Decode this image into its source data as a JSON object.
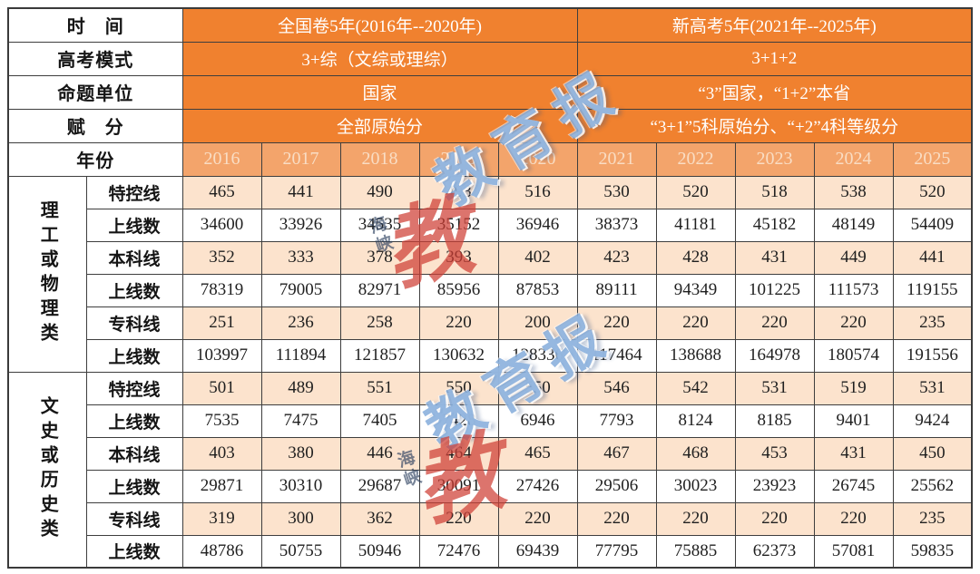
{
  "colors": {
    "header_orange": "#f0812f",
    "year_row_orange": "#f3a46b",
    "year_text": "#f9ddc4",
    "shaded_peach": "#fce3cd",
    "border": "#3e3e3e",
    "watermark_blue": "#6d9cd4",
    "watermark_red": "#ce3e34"
  },
  "watermark": {
    "main_text": "教育报",
    "script_glyph": "教",
    "side_text": "海峡"
  },
  "chart_data": {
    "type": "table",
    "title": "",
    "meta_rows": [
      {
        "label": "时　间",
        "national": "全国卷5年(2016年--2020年)",
        "new_gaokao": "新高考5年(2021年--2025年)"
      },
      {
        "label": "高考模式",
        "national": "3+综（文综或理综）",
        "new_gaokao": "3+1+2"
      },
      {
        "label": "命题单位",
        "national": "国家",
        "new_gaokao": "“3”国家，“1+2”本省"
      },
      {
        "label": "赋　分",
        "national": "全部原始分",
        "new_gaokao": "“3+1”5科原始分、“+2”4科等级分"
      }
    ],
    "year_header": {
      "label": "年份",
      "years": [
        "2016",
        "2017",
        "2018",
        "2019",
        "2020",
        "2021",
        "2022",
        "2023",
        "2024",
        "2025"
      ]
    },
    "groups": [
      {
        "name": "理工或物理类",
        "metrics": [
          {
            "label": "特控线",
            "shaded": true,
            "values": [
              465,
              441,
              490,
              493,
              516,
              530,
              520,
              518,
              538,
              520
            ]
          },
          {
            "label": "上线数",
            "shaded": false,
            "values": [
              34600,
              33926,
              34535,
              35152,
              36946,
              38373,
              41181,
              45182,
              48149,
              54409
            ]
          },
          {
            "label": "本科线",
            "shaded": true,
            "values": [
              352,
              333,
              378,
              393,
              402,
              423,
              428,
              431,
              449,
              441
            ]
          },
          {
            "label": "上线数",
            "shaded": false,
            "values": [
              78319,
              79005,
              82971,
              85956,
              87853,
              89111,
              94349,
              101225,
              111573,
              119155
            ]
          },
          {
            "label": "专科线",
            "shaded": true,
            "values": [
              251,
              236,
              258,
              220,
              200,
              220,
              220,
              220,
              220,
              235
            ]
          },
          {
            "label": "上线数",
            "shaded": false,
            "values": [
              103997,
              111894,
              121857,
              130632,
              128336,
              117464,
              138688,
              164978,
              180574,
              191556
            ]
          }
        ]
      },
      {
        "name": "文史或历史类",
        "metrics": [
          {
            "label": "特控线",
            "shaded": true,
            "values": [
              501,
              489,
              551,
              550,
              550,
              546,
              542,
              531,
              519,
              531
            ]
          },
          {
            "label": "上线数",
            "shaded": false,
            "values": [
              7535,
              7475,
              7405,
              7428,
              6946,
              7793,
              8124,
              8185,
              9401,
              9424
            ]
          },
          {
            "label": "本科线",
            "shaded": true,
            "values": [
              403,
              380,
              446,
              464,
              465,
              467,
              468,
              453,
              431,
              450
            ]
          },
          {
            "label": "上线数",
            "shaded": false,
            "values": [
              29871,
              30310,
              29687,
              30091,
              27426,
              29506,
              30023,
              23923,
              26745,
              25562
            ]
          },
          {
            "label": "专科线",
            "shaded": true,
            "values": [
              319,
              300,
              362,
              220,
              220,
              220,
              220,
              220,
              220,
              235
            ]
          },
          {
            "label": "上线数",
            "shaded": false,
            "values": [
              48786,
              50755,
              50946,
              72476,
              69439,
              77795,
              75885,
              62373,
              57081,
              59835
            ]
          }
        ]
      }
    ]
  }
}
